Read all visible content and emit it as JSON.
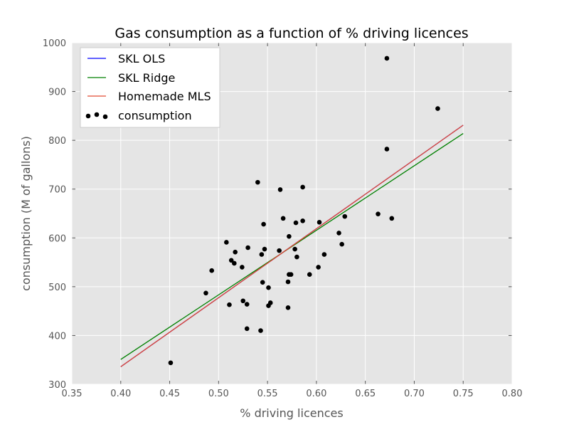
{
  "chart_data": {
    "type": "scatter",
    "title": "Gas consumption as a function of % driving licences",
    "xlabel": "% driving licences",
    "ylabel": "consumption (M of gallons)",
    "xlim": [
      0.35,
      0.8
    ],
    "ylim": [
      300,
      1000
    ],
    "xticks": [
      0.35,
      0.4,
      0.45,
      0.5,
      0.55,
      0.6,
      0.65,
      0.7,
      0.75,
      0.8
    ],
    "xtick_labels": [
      "0.35",
      "0.40",
      "0.45",
      "0.50",
      "0.55",
      "0.60",
      "0.65",
      "0.70",
      "0.75",
      "0.80"
    ],
    "yticks": [
      300,
      400,
      500,
      600,
      700,
      800,
      900,
      1000
    ],
    "ytick_labels": [
      "300",
      "400",
      "500",
      "600",
      "700",
      "800",
      "900",
      "1000"
    ],
    "grid": true,
    "legend_position": "top-left",
    "background_color": "#e5e5e5",
    "lines": [
      {
        "name": "SKL OLS",
        "color": "#0000ff",
        "x": [
          0.4,
          0.75
        ],
        "y": [
          336,
          831
        ]
      },
      {
        "name": "SKL Ridge",
        "color": "#008000",
        "x": [
          0.4,
          0.75
        ],
        "y": [
          351,
          814
        ]
      },
      {
        "name": "Homemade MLS",
        "color": "#e24a33",
        "x": [
          0.4,
          0.75
        ],
        "y": [
          336,
          831
        ]
      }
    ],
    "scatter": {
      "name": "consumption",
      "color": "#000000",
      "points": [
        [
          0.451,
          344
        ],
        [
          0.487,
          487
        ],
        [
          0.493,
          533
        ],
        [
          0.508,
          591
        ],
        [
          0.511,
          463
        ],
        [
          0.513,
          554
        ],
        [
          0.516,
          548
        ],
        [
          0.517,
          571
        ],
        [
          0.524,
          540
        ],
        [
          0.525,
          471
        ],
        [
          0.529,
          414
        ],
        [
          0.529,
          464
        ],
        [
          0.53,
          580
        ],
        [
          0.54,
          714
        ],
        [
          0.543,
          410
        ],
        [
          0.544,
          566
        ],
        [
          0.545,
          509
        ],
        [
          0.546,
          628
        ],
        [
          0.547,
          577
        ],
        [
          0.551,
          461
        ],
        [
          0.551,
          498
        ],
        [
          0.553,
          467
        ],
        [
          0.562,
          574
        ],
        [
          0.563,
          699
        ],
        [
          0.566,
          640
        ],
        [
          0.571,
          510
        ],
        [
          0.571,
          457
        ],
        [
          0.572,
          603
        ],
        [
          0.572,
          525
        ],
        [
          0.574,
          525
        ],
        [
          0.578,
          577
        ],
        [
          0.579,
          631
        ],
        [
          0.58,
          561
        ],
        [
          0.586,
          635
        ],
        [
          0.586,
          704
        ],
        [
          0.593,
          525
        ],
        [
          0.602,
          540
        ],
        [
          0.603,
          632
        ],
        [
          0.608,
          566
        ],
        [
          0.623,
          610
        ],
        [
          0.626,
          587
        ],
        [
          0.629,
          644
        ],
        [
          0.663,
          649
        ],
        [
          0.672,
          968
        ],
        [
          0.672,
          782
        ],
        [
          0.677,
          640
        ],
        [
          0.724,
          865
        ]
      ]
    }
  }
}
